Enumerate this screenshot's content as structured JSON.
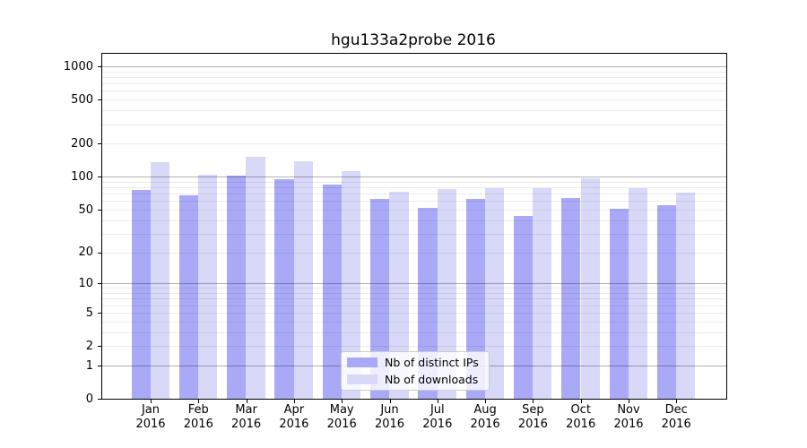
{
  "colors": {
    "distinct_ips": "#a9a9f7",
    "downloads": "#d8d8f8",
    "grid_major": "rgba(0,0,0,0.30)",
    "grid_minor": "rgba(0,0,0,0.08)",
    "axis": "#000000",
    "legend_border": "#cccccc",
    "legend_bg": "rgba(255,255,255,0.8)"
  },
  "chart_data": {
    "type": "bar",
    "title": "hgu133a2probe 2016",
    "categories": [
      "Jan 2016",
      "Feb 2016",
      "Mar 2016",
      "Apr 2016",
      "May 2016",
      "Jun 2016",
      "Jul 2016",
      "Aug 2016",
      "Sep 2016",
      "Oct 2016",
      "Nov 2016",
      "Dec 2016"
    ],
    "series": [
      {
        "name": "Nb of distinct IPs",
        "color_key": "distinct_ips",
        "values": [
          76,
          67,
          103,
          95,
          85,
          63,
          52,
          63,
          44,
          64,
          51,
          55
        ]
      },
      {
        "name": "Nb of downloads",
        "color_key": "downloads",
        "values": [
          135,
          105,
          152,
          137,
          112,
          73,
          77,
          78,
          79,
          97,
          79,
          71
        ]
      }
    ],
    "yticks": [
      0,
      1,
      2,
      5,
      10,
      20,
      50,
      100,
      200,
      500,
      1000
    ],
    "scale": "log1p",
    "ylim": [
      0,
      1250
    ],
    "xlabel": "",
    "ylabel": "",
    "grid": true,
    "legend_position": "lower center"
  }
}
